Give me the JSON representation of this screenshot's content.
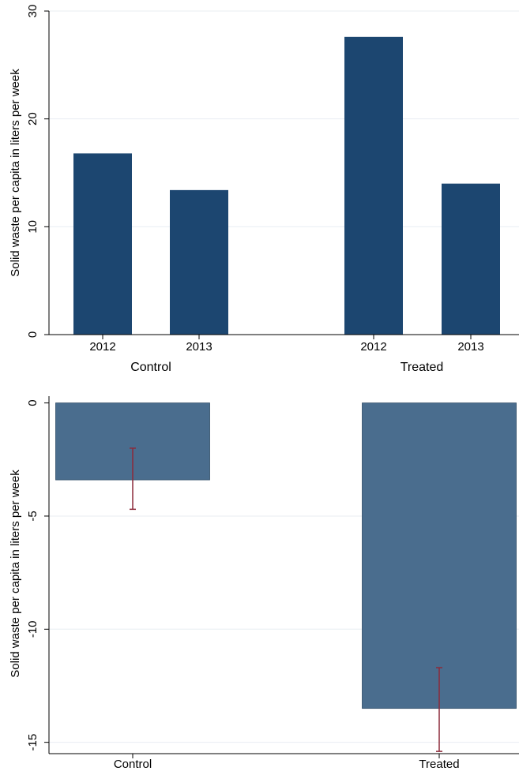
{
  "chart_data": [
    {
      "type": "bar",
      "ylabel": "Solid waste per capita in liters per week",
      "ylim": [
        0,
        30
      ],
      "yticks": [
        0,
        10,
        20,
        30
      ],
      "grid": true,
      "groups": [
        {
          "name": "Control",
          "categories": [
            "2012",
            "2013"
          ],
          "values": [
            16.8,
            13.4
          ]
        },
        {
          "name": "Treated",
          "categories": [
            "2012",
            "2013"
          ],
          "values": [
            27.6,
            14.0
          ]
        }
      ],
      "colors": {
        "bar": "#1c4670",
        "grid": "#e8edf2"
      }
    },
    {
      "type": "bar",
      "ylabel": "Solid waste per capita in liters per week",
      "ylim": [
        -15.5,
        0.3
      ],
      "yticks": [
        0,
        -5,
        -10,
        -15
      ],
      "grid": true,
      "categories": [
        "Control",
        "Treated"
      ],
      "values": [
        -3.4,
        -13.5
      ],
      "error_low": [
        -4.7,
        -15.4
      ],
      "error_high": [
        -2.0,
        -11.7
      ],
      "colors": {
        "bar": "#4a6d8e",
        "error": "#8c2a3a",
        "grid": "#e8edf2"
      }
    }
  ]
}
